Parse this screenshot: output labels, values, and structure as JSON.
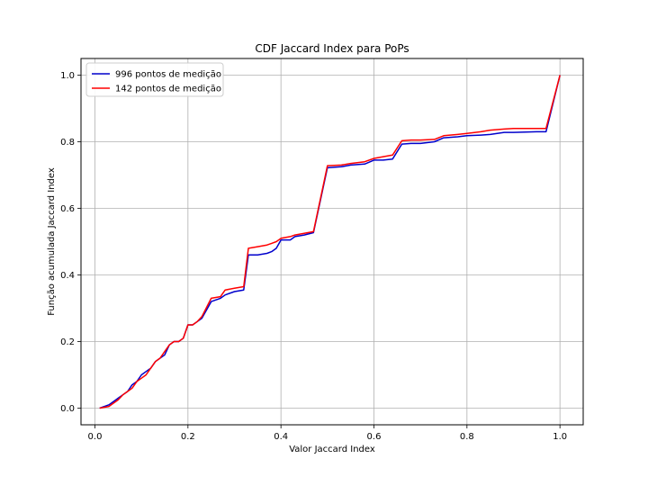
{
  "chart_data": {
    "type": "line",
    "title": "CDF Jaccard Index para PoPs",
    "xlabel": "Valor Jaccard Index",
    "ylabel": "Função acumulada Jaccard Index",
    "xlim": [
      -0.03,
      1.05
    ],
    "ylim": [
      -0.05,
      1.05
    ],
    "xticks": [
      "0.0",
      "0.2",
      "0.4",
      "0.6",
      "0.8",
      "1.0"
    ],
    "yticks": [
      "0.0",
      "0.2",
      "0.4",
      "0.6",
      "0.8",
      "1.0"
    ],
    "grid": true,
    "legend_position": "top-left",
    "series": [
      {
        "name": "996 pontos de medição",
        "color": "#0000cc",
        "x": [
          0.01,
          0.03,
          0.04,
          0.05,
          0.06,
          0.07,
          0.08,
          0.09,
          0.1,
          0.11,
          0.12,
          0.13,
          0.14,
          0.15,
          0.16,
          0.17,
          0.18,
          0.19,
          0.2,
          0.21,
          0.22,
          0.23,
          0.25,
          0.27,
          0.28,
          0.3,
          0.32,
          0.33,
          0.35,
          0.37,
          0.38,
          0.39,
          0.4,
          0.42,
          0.43,
          0.45,
          0.47,
          0.5,
          0.53,
          0.55,
          0.58,
          0.6,
          0.62,
          0.64,
          0.66,
          0.68,
          0.7,
          0.73,
          0.75,
          0.78,
          0.8,
          0.83,
          0.85,
          0.88,
          0.9,
          0.95,
          0.97,
          1.0
        ],
        "y": [
          0.0,
          0.01,
          0.02,
          0.03,
          0.04,
          0.05,
          0.07,
          0.08,
          0.1,
          0.11,
          0.12,
          0.14,
          0.15,
          0.16,
          0.19,
          0.2,
          0.2,
          0.21,
          0.25,
          0.25,
          0.26,
          0.27,
          0.32,
          0.33,
          0.34,
          0.35,
          0.355,
          0.46,
          0.46,
          0.465,
          0.47,
          0.48,
          0.505,
          0.505,
          0.515,
          0.52,
          0.527,
          0.722,
          0.725,
          0.73,
          0.733,
          0.745,
          0.745,
          0.748,
          0.793,
          0.795,
          0.795,
          0.8,
          0.812,
          0.815,
          0.818,
          0.82,
          0.822,
          0.828,
          0.828,
          0.83,
          0.83,
          1.0
        ]
      },
      {
        "name": "142 pontos de medição",
        "color": "#ff0000",
        "x": [
          0.01,
          0.03,
          0.04,
          0.05,
          0.06,
          0.07,
          0.08,
          0.09,
          0.1,
          0.11,
          0.12,
          0.13,
          0.14,
          0.15,
          0.16,
          0.17,
          0.18,
          0.19,
          0.2,
          0.21,
          0.22,
          0.23,
          0.25,
          0.27,
          0.28,
          0.3,
          0.32,
          0.33,
          0.35,
          0.37,
          0.38,
          0.39,
          0.4,
          0.42,
          0.43,
          0.45,
          0.47,
          0.5,
          0.53,
          0.55,
          0.58,
          0.6,
          0.62,
          0.64,
          0.66,
          0.68,
          0.7,
          0.73,
          0.75,
          0.78,
          0.8,
          0.83,
          0.85,
          0.88,
          0.9,
          0.95,
          0.97,
          1.0
        ],
        "y": [
          0.0,
          0.005,
          0.015,
          0.025,
          0.04,
          0.05,
          0.06,
          0.08,
          0.09,
          0.1,
          0.12,
          0.14,
          0.15,
          0.17,
          0.19,
          0.2,
          0.2,
          0.21,
          0.25,
          0.25,
          0.26,
          0.275,
          0.33,
          0.335,
          0.355,
          0.36,
          0.365,
          0.48,
          0.485,
          0.49,
          0.495,
          0.5,
          0.51,
          0.515,
          0.52,
          0.525,
          0.53,
          0.728,
          0.73,
          0.735,
          0.74,
          0.75,
          0.755,
          0.76,
          0.803,
          0.805,
          0.805,
          0.807,
          0.818,
          0.822,
          0.825,
          0.83,
          0.835,
          0.838,
          0.84,
          0.84,
          0.84,
          1.0
        ]
      }
    ]
  }
}
